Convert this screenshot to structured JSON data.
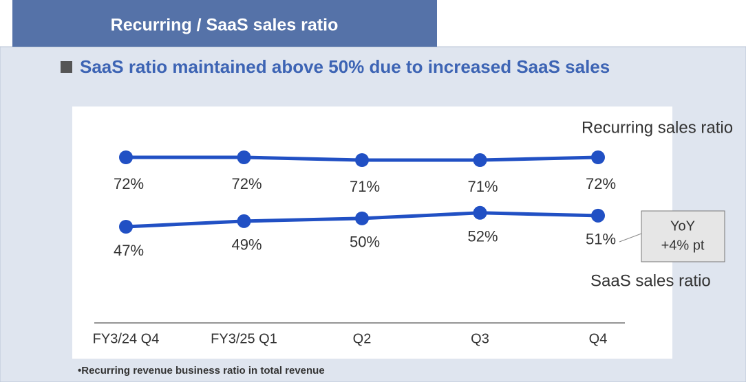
{
  "header": {
    "title": "Recurring / SaaS sales ratio"
  },
  "subtitle": "SaaS ratio maintained above 50% due to increased SaaS sales",
  "chart_data": {
    "type": "line",
    "categories": [
      "FY3/24 Q4",
      "FY3/25 Q1",
      "Q2",
      "Q3",
      "Q4"
    ],
    "series": [
      {
        "name": "Recurring sales ratio",
        "color": "#2150c4",
        "values": [
          72,
          72,
          71,
          71,
          72
        ],
        "value_labels": [
          "72%",
          "72%",
          "71%",
          "71%",
          "72%"
        ]
      },
      {
        "name": "SaaS sales ratio",
        "color": "#2150c4",
        "values": [
          47,
          49,
          50,
          52,
          51
        ],
        "value_labels": [
          "47%",
          "49%",
          "50%",
          "52%",
          "51%"
        ]
      }
    ],
    "annotation": [
      "YoY",
      "+4% pt"
    ]
  },
  "footnote": "•Recurring revenue business ratio in total revenue"
}
